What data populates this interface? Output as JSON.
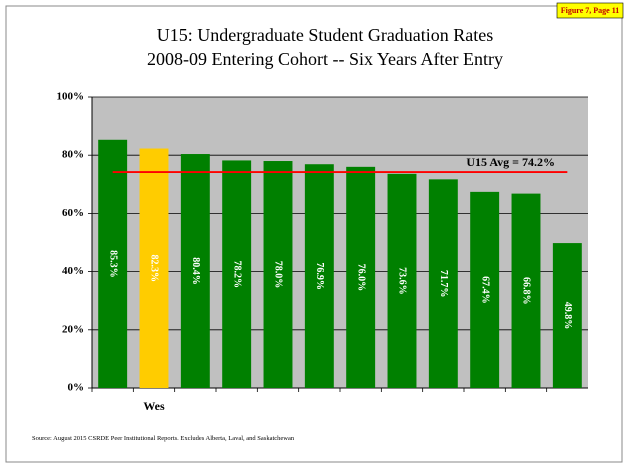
{
  "badge": "Figure 7, Page 11",
  "chart_data": {
    "type": "bar",
    "title": "U15: Undergraduate Student Graduation Rates",
    "subtitle": "2008-09 Entering Cohort -- Six Years After Entry",
    "categories": [
      null,
      "Wes",
      null,
      null,
      null,
      null,
      null,
      null,
      null,
      null,
      null,
      null
    ],
    "values": [
      85.3,
      82.3,
      80.4,
      78.2,
      78.0,
      76.9,
      76.0,
      73.6,
      71.7,
      67.4,
      66.8,
      49.8
    ],
    "value_labels": [
      "85.3%",
      "82.3%",
      "80.4%",
      "78.2%",
      "78.0%",
      "76.9%",
      "76.0%",
      "73.6%",
      "71.7%",
      "67.4%",
      "66.8%",
      "49.8%"
    ],
    "colors": [
      "#008000",
      "#ffcc00",
      "#008000",
      "#008000",
      "#008000",
      "#008000",
      "#008000",
      "#008000",
      "#008000",
      "#008000",
      "#008000",
      "#008000"
    ],
    "ylim": [
      0,
      100
    ],
    "yticks": [
      {
        "value": 0,
        "label": "0%"
      },
      {
        "value": 20,
        "label": "20%"
      },
      {
        "value": 40,
        "label": "40%"
      },
      {
        "value": 60,
        "label": "60%"
      },
      {
        "value": 80,
        "label": "80%"
      },
      {
        "value": 100,
        "label": "100%"
      }
    ],
    "grid": true,
    "reference_line": {
      "value": 74.2,
      "label": "U15 Avg = 74.2%",
      "color": "#ff0000"
    },
    "source": "Source:  August 2015 CSRDE Peer Institutional Reports.  Excludes Alberta, Laval, and Saskatchewan"
  }
}
